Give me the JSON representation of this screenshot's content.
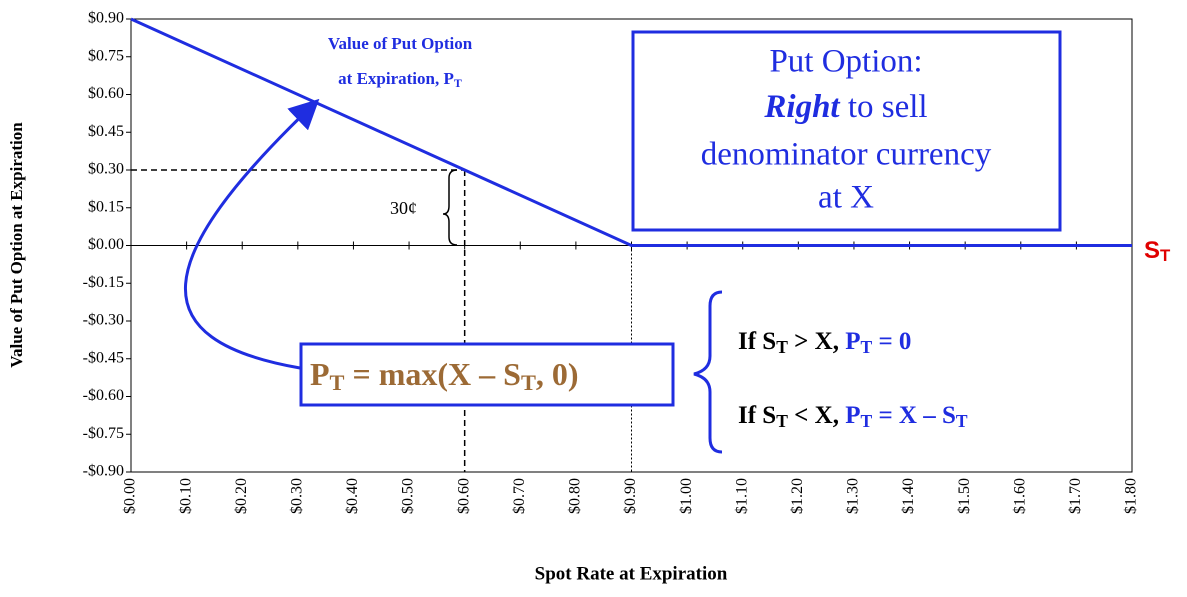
{
  "chart_data": {
    "type": "line",
    "x": [
      0,
      0.9,
      1.8
    ],
    "values": [
      0.9,
      0,
      0
    ],
    "color": "#1f2de0",
    "xlim": [
      0,
      1.8
    ],
    "ylim": [
      -0.9,
      0.9
    ],
    "xticks": [
      {
        "value": 0,
        "label": "$0.00"
      },
      {
        "value": 0.1,
        "label": "$0.10"
      },
      {
        "value": 0.2,
        "label": "$0.20"
      },
      {
        "value": 0.3,
        "label": "$0.30"
      },
      {
        "value": 0.4,
        "label": "$0.40"
      },
      {
        "value": 0.5,
        "label": "$0.50"
      },
      {
        "value": 0.6,
        "label": "$0.60"
      },
      {
        "value": 0.7,
        "label": "$0.70"
      },
      {
        "value": 0.8,
        "label": "$0.80"
      },
      {
        "value": 0.9,
        "label": "$0.90"
      },
      {
        "value": 1.0,
        "label": "$1.00"
      },
      {
        "value": 1.1,
        "label": "$1.10"
      },
      {
        "value": 1.2,
        "label": "$1.20"
      },
      {
        "value": 1.3,
        "label": "$1.30"
      },
      {
        "value": 1.4,
        "label": "$1.40"
      },
      {
        "value": 1.5,
        "label": "$1.50"
      },
      {
        "value": 1.6,
        "label": "$1.60"
      },
      {
        "value": 1.7,
        "label": "$1.70"
      },
      {
        "value": 1.8,
        "label": "$1.80"
      }
    ],
    "yticks": [
      {
        "value": 0.9,
        "label": "$0.90"
      },
      {
        "value": 0.75,
        "label": "$0.75"
      },
      {
        "value": 0.6,
        "label": "$0.60"
      },
      {
        "value": 0.45,
        "label": "$0.45"
      },
      {
        "value": 0.3,
        "label": "$0.30"
      },
      {
        "value": 0.15,
        "label": "$0.15"
      },
      {
        "value": 0,
        "label": "$0.00"
      },
      {
        "value": -0.15,
        "label": "-$0.15"
      },
      {
        "value": -0.3,
        "label": "-$0.30"
      },
      {
        "value": -0.45,
        "label": "-$0.45"
      },
      {
        "value": -0.6,
        "label": "-$0.60"
      },
      {
        "value": -0.75,
        "label": "-$0.75"
      },
      {
        "value": -0.9,
        "label": "-$0.90"
      }
    ],
    "guides": [
      {
        "x": 0.6,
        "y": 0.3
      },
      {
        "x": 0.9,
        "y": 0
      }
    ],
    "xlabel": "Spot Rate at Expiration",
    "ylabel": "Value of Put Option at Expiration",
    "axis_symbol": [
      "S",
      "T"
    ],
    "premium_label": "30¢",
    "line_label": [
      "Value of Put Option",
      "at Expiration, P",
      "T"
    ],
    "definition": [
      "Put Option:",
      "Right",
      " to sell",
      "denominator currency",
      "at X"
    ],
    "formula": [
      "P",
      "T",
      " = max(X – S",
      "T",
      ", 0)"
    ],
    "cases": [
      [
        "If S",
        "T",
        " > X, ",
        "P",
        "T",
        " = 0"
      ],
      [
        "If S",
        "T",
        " < X, ",
        "P",
        "T",
        " = X – S",
        "T"
      ]
    ]
  }
}
